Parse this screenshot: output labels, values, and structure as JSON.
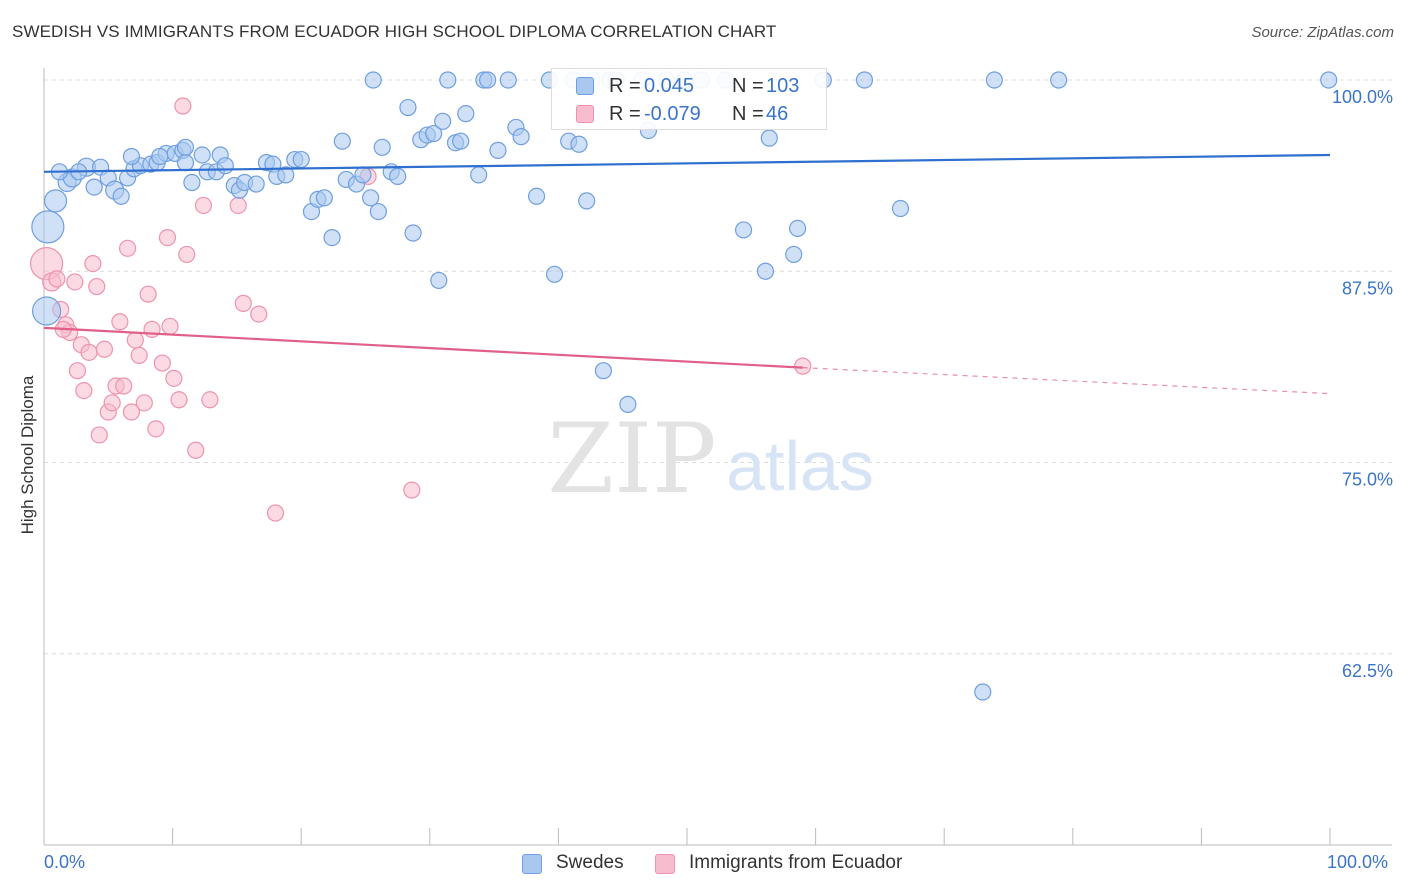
{
  "header": {
    "title": "SWEDISH VS IMMIGRANTS FROM ECUADOR HIGH SCHOOL DIPLOMA CORRELATION CHART",
    "source": "Source: ZipAtlas.com"
  },
  "watermark": {
    "zip": "ZIP",
    "atlas": "atlas"
  },
  "legend_top": {
    "rows": [
      {
        "r_label": "R =",
        "r_value": "0.045",
        "n_label": "N =",
        "n_value": "103"
      },
      {
        "r_label": "R =",
        "r_value": "-0.079",
        "n_label": "N =",
        "n_value": "46"
      }
    ]
  },
  "legend_bottom": {
    "items": [
      {
        "label": "Swedes"
      },
      {
        "label": "Immigrants from Ecuador"
      }
    ]
  },
  "colors": {
    "swedes_fill": "#a9c8f0",
    "swedes_stroke": "#6f9fe0",
    "swedes_line": "#2f6fcf",
    "ecuador_fill": "#f7bccd",
    "ecuador_stroke": "#ee93ae",
    "ecuador_line": "#e0608a",
    "tick_label": "#3a74c9",
    "grid": "#dcdcdc"
  },
  "chart_data": {
    "type": "scatter",
    "title": "SWEDISH VS IMMIGRANTS FROM ECUADOR HIGH SCHOOL DIPLOMA CORRELATION CHART",
    "xlabel": "",
    "ylabel": "High School Diploma",
    "xlim": [
      0,
      100
    ],
    "ylim": [
      50,
      100
    ],
    "x_tick_labels": [
      "0.0%",
      "100.0%"
    ],
    "y_ticks": [
      62.5,
      75.0,
      87.5,
      100.0
    ],
    "y_tick_labels": [
      "62.5%",
      "75.0%",
      "87.5%",
      "100.0%"
    ],
    "grid": "horizontal dashed",
    "legend": "top-center and bottom-center",
    "series": [
      {
        "name": "Swedes",
        "trend": {
          "x": [
            0,
            100
          ],
          "y": [
            94.0,
            95.1
          ]
        },
        "points": [
          [
            0.3,
            90.4,
            16
          ],
          [
            0.9,
            92.1,
            11
          ],
          [
            1.8,
            93.3,
            9
          ],
          [
            2.2,
            93.6,
            9
          ],
          [
            3.3,
            94.3,
            9
          ],
          [
            4.4,
            94.3,
            8
          ],
          [
            5.0,
            93.6,
            8
          ],
          [
            5.5,
            92.8,
            9
          ],
          [
            6.0,
            92.4,
            8
          ],
          [
            6.5,
            93.6,
            8
          ],
          [
            7.0,
            94.2,
            8
          ],
          [
            7.5,
            94.4,
            8
          ],
          [
            8.3,
            94.5,
            8
          ],
          [
            8.8,
            94.6,
            8
          ],
          [
            9.5,
            95.2,
            8
          ],
          [
            10.2,
            95.2,
            8
          ],
          [
            10.8,
            95.4,
            8
          ],
          [
            11.0,
            94.6,
            8
          ],
          [
            11.5,
            93.3,
            8
          ],
          [
            12.3,
            95.1,
            8
          ],
          [
            12.7,
            94.0,
            8
          ],
          [
            13.4,
            94.0,
            8
          ],
          [
            13.7,
            95.1,
            8
          ],
          [
            14.1,
            94.4,
            8
          ],
          [
            14.8,
            93.1,
            8
          ],
          [
            15.2,
            92.8,
            8
          ],
          [
            15.6,
            93.3,
            8
          ],
          [
            16.5,
            93.2,
            8
          ],
          [
            17.3,
            94.6,
            8
          ],
          [
            17.8,
            94.5,
            8
          ],
          [
            18.1,
            93.7,
            8
          ],
          [
            18.8,
            93.8,
            8
          ],
          [
            19.5,
            94.8,
            8
          ],
          [
            20.0,
            94.8,
            8
          ],
          [
            20.8,
            91.4,
            8
          ],
          [
            21.3,
            92.2,
            8
          ],
          [
            21.8,
            92.3,
            8
          ],
          [
            22.4,
            89.7,
            8
          ],
          [
            23.2,
            96.0,
            8
          ],
          [
            23.5,
            93.5,
            8
          ],
          [
            24.3,
            93.2,
            8
          ],
          [
            24.8,
            93.8,
            8
          ],
          [
            25.4,
            92.3,
            8
          ],
          [
            25.6,
            100.0,
            8
          ],
          [
            26.0,
            91.4,
            8
          ],
          [
            26.3,
            95.6,
            8
          ],
          [
            27.0,
            94.0,
            8
          ],
          [
            27.5,
            93.7,
            8
          ],
          [
            28.3,
            98.2,
            8
          ],
          [
            28.7,
            90.0,
            8
          ],
          [
            29.3,
            96.1,
            8
          ],
          [
            29.8,
            96.4,
            8
          ],
          [
            30.3,
            96.5,
            8
          ],
          [
            30.7,
            86.9,
            8
          ],
          [
            31.0,
            97.3,
            8
          ],
          [
            31.4,
            100.0,
            8
          ],
          [
            32.0,
            95.9,
            8
          ],
          [
            32.4,
            96.0,
            8
          ],
          [
            32.8,
            97.8,
            8
          ],
          [
            33.8,
            93.8,
            8
          ],
          [
            34.2,
            100.0,
            8
          ],
          [
            34.5,
            100.0,
            8
          ],
          [
            35.3,
            95.4,
            8
          ],
          [
            36.1,
            100.0,
            8
          ],
          [
            36.7,
            96.9,
            8
          ],
          [
            37.1,
            96.3,
            8
          ],
          [
            38.3,
            92.4,
            8
          ],
          [
            39.3,
            100.0,
            8
          ],
          [
            39.7,
            87.3,
            8
          ],
          [
            40.8,
            96.0,
            8
          ],
          [
            41.2,
            100.0,
            8
          ],
          [
            41.6,
            95.8,
            8
          ],
          [
            42.2,
            92.1,
            8
          ],
          [
            42.6,
            100.0,
            8
          ],
          [
            43.5,
            81.0,
            8
          ],
          [
            44.0,
            100.0,
            8
          ],
          [
            44.5,
            100.0,
            8
          ],
          [
            45.4,
            78.8,
            8
          ],
          [
            46.5,
            100.0,
            8
          ],
          [
            47.0,
            96.7,
            8
          ],
          [
            48.4,
            100.0,
            8
          ],
          [
            49.8,
            100.0,
            8
          ],
          [
            51.1,
            100.0,
            8
          ],
          [
            53.0,
            100.0,
            8
          ],
          [
            54.4,
            90.2,
            8
          ],
          [
            56.1,
            87.5,
            8
          ],
          [
            56.4,
            96.2,
            8
          ],
          [
            58.3,
            88.6,
            8
          ],
          [
            58.6,
            90.3,
            8
          ],
          [
            60.6,
            100.0,
            8
          ],
          [
            63.8,
            100.0,
            8
          ],
          [
            66.6,
            91.6,
            8
          ],
          [
            73.0,
            60.0,
            8
          ],
          [
            73.9,
            100.0,
            8
          ],
          [
            78.9,
            100.0,
            8
          ],
          [
            99.9,
            100.0,
            8
          ],
          [
            0.2,
            84.9,
            14
          ],
          [
            1.2,
            94.0,
            8
          ],
          [
            2.7,
            94.0,
            8
          ],
          [
            3.9,
            93.0,
            8
          ],
          [
            6.8,
            95.0,
            8
          ],
          [
            9.0,
            95.0,
            8
          ],
          [
            11.0,
            95.6,
            8
          ]
        ]
      },
      {
        "name": "Immigrants from Ecuador",
        "trend": {
          "x": [
            0,
            59
          ],
          "y": [
            83.8,
            81.2
          ],
          "dashed_to": {
            "x": 100,
            "y": 79.5
          }
        },
        "points": [
          [
            0.2,
            88.0,
            16
          ],
          [
            0.6,
            86.8,
            9
          ],
          [
            1.0,
            87.0,
            8
          ],
          [
            1.3,
            85.0,
            8
          ],
          [
            1.7,
            84.0,
            8
          ],
          [
            2.0,
            83.5,
            8
          ],
          [
            2.4,
            86.8,
            8
          ],
          [
            2.6,
            81.0,
            8
          ],
          [
            2.9,
            82.7,
            8
          ],
          [
            3.1,
            79.7,
            8
          ],
          [
            3.5,
            82.2,
            8
          ],
          [
            3.8,
            88.0,
            8
          ],
          [
            4.1,
            86.5,
            8
          ],
          [
            4.3,
            76.8,
            8
          ],
          [
            4.7,
            82.4,
            8
          ],
          [
            5.0,
            78.3,
            8
          ],
          [
            5.3,
            78.9,
            8
          ],
          [
            5.6,
            80.0,
            8
          ],
          [
            5.9,
            84.2,
            8
          ],
          [
            6.2,
            80.0,
            8
          ],
          [
            6.5,
            89.0,
            8
          ],
          [
            6.8,
            78.3,
            8
          ],
          [
            7.1,
            83.0,
            8
          ],
          [
            7.4,
            82.0,
            8
          ],
          [
            7.8,
            78.9,
            8
          ],
          [
            8.1,
            86.0,
            8
          ],
          [
            8.4,
            83.7,
            8
          ],
          [
            8.7,
            77.2,
            8
          ],
          [
            9.2,
            81.5,
            8
          ],
          [
            9.6,
            89.7,
            8
          ],
          [
            9.8,
            83.9,
            8
          ],
          [
            10.1,
            80.5,
            8
          ],
          [
            10.5,
            79.1,
            8
          ],
          [
            10.8,
            98.3,
            8
          ],
          [
            11.1,
            88.6,
            8
          ],
          [
            11.8,
            75.8,
            8
          ],
          [
            12.4,
            91.8,
            8
          ],
          [
            12.9,
            79.1,
            8
          ],
          [
            15.1,
            91.8,
            8
          ],
          [
            15.5,
            85.4,
            8
          ],
          [
            16.7,
            84.7,
            8
          ],
          [
            18.0,
            71.7,
            8
          ],
          [
            25.2,
            93.7,
            8
          ],
          [
            28.6,
            73.2,
            8
          ],
          [
            59.0,
            81.3,
            8
          ],
          [
            1.5,
            83.7,
            8
          ]
        ]
      }
    ]
  }
}
